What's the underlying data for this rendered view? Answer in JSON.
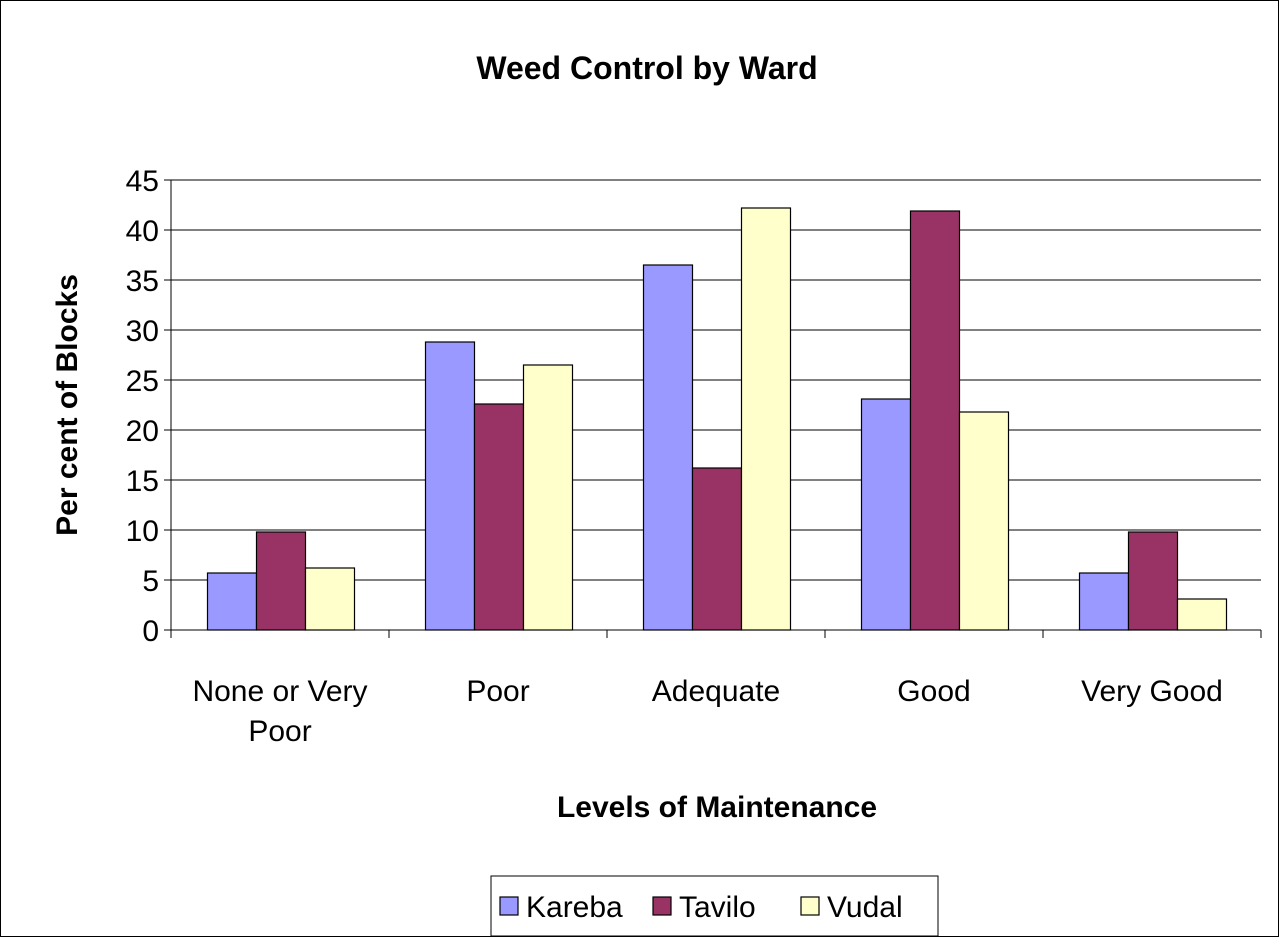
{
  "chart_data": {
    "type": "bar",
    "title": "Weed Control by Ward",
    "xlabel": "Levels of Maintenance",
    "ylabel": "Per cent of Blocks",
    "ylim": [
      0,
      45
    ],
    "yticks": [
      0,
      5,
      10,
      15,
      20,
      25,
      30,
      35,
      40,
      45
    ],
    "categories": [
      "None or Very Poor",
      "Poor",
      "Adequate",
      "Good",
      "Very Good"
    ],
    "category_lines": [
      [
        "None or Very",
        "Poor"
      ],
      [
        "Poor"
      ],
      [
        "Adequate"
      ],
      [
        "Good"
      ],
      [
        "Very Good"
      ]
    ],
    "series": [
      {
        "name": "Kareba",
        "color": "#9999ff",
        "values": [
          5.7,
          28.8,
          36.5,
          23.1,
          5.7
        ]
      },
      {
        "name": "Tavilo",
        "color": "#993366",
        "values": [
          9.8,
          22.6,
          16.2,
          41.9,
          9.8
        ]
      },
      {
        "name": "Vudal",
        "color": "#ffffcc",
        "values": [
          6.2,
          26.5,
          42.2,
          21.8,
          3.1
        ]
      }
    ],
    "grid": true,
    "legend_position": "bottom"
  }
}
